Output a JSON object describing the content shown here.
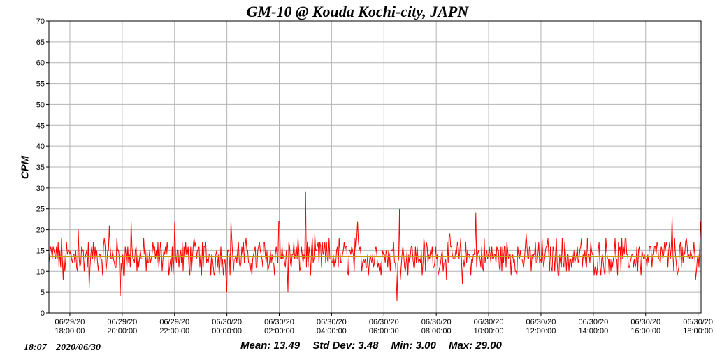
{
  "chart_data": {
    "type": "line",
    "title": "GM-10 @ Kouda Kochi-city, JAPN",
    "ylabel": "CPM",
    "xlabel": "",
    "ylim": [
      0,
      70
    ],
    "yticks": [
      0,
      5,
      10,
      15,
      20,
      25,
      30,
      35,
      40,
      45,
      50,
      55,
      60,
      65,
      70
    ],
    "xlim": [
      "2020-06-29 17:12",
      "2020-06-30 18:07"
    ],
    "xticks": [
      {
        "time": "2020-06-29 18:00",
        "date": "06/29/20",
        "clock": "18:00:00"
      },
      {
        "time": "2020-06-29 20:00",
        "date": "06/29/20",
        "clock": "20:00:00"
      },
      {
        "time": "2020-06-29 22:00",
        "date": "06/29/20",
        "clock": "22:00:00"
      },
      {
        "time": "2020-06-30 00:00",
        "date": "06/30/20",
        "clock": "00:00:00"
      },
      {
        "time": "2020-06-30 02:00",
        "date": "06/30/20",
        "clock": "02:00:00"
      },
      {
        "time": "2020-06-30 04:00",
        "date": "06/30/20",
        "clock": "04:00:00"
      },
      {
        "time": "2020-06-30 06:00",
        "date": "06/30/20",
        "clock": "06:00:00"
      },
      {
        "time": "2020-06-30 08:00",
        "date": "06/30/20",
        "clock": "08:00:00"
      },
      {
        "time": "2020-06-30 10:00",
        "date": "06/30/20",
        "clock": "10:00:00"
      },
      {
        "time": "2020-06-30 12:00",
        "date": "06/30/20",
        "clock": "12:00:00"
      },
      {
        "time": "2020-06-30 14:00",
        "date": "06/30/20",
        "clock": "14:00:00"
      },
      {
        "time": "2020-06-30 16:00",
        "date": "06/30/20",
        "clock": "16:00:00"
      },
      {
        "time": "2020-06-30 18:00",
        "date": "06/30/20",
        "clock": "18:00:00"
      }
    ],
    "grid": true,
    "series": [
      {
        "color": "#ff0000",
        "note_points": [
          {
            "x": "2020-06-29 17:12",
            "y": 12
          },
          {
            "x": "2020-06-29 17:30",
            "y": 16
          },
          {
            "x": "2020-06-29 17:45",
            "y": 8
          },
          {
            "x": "2020-06-29 18:00",
            "y": 14
          },
          {
            "x": "2020-06-29 18:20",
            "y": 20
          },
          {
            "x": "2020-06-29 18:45",
            "y": 6
          },
          {
            "x": "2020-06-29 19:00",
            "y": 13
          },
          {
            "x": "2020-06-29 19:30",
            "y": 21
          },
          {
            "x": "2020-06-29 19:56",
            "y": 4
          },
          {
            "x": "2020-06-29 20:20",
            "y": 22
          },
          {
            "x": "2020-06-29 21:00",
            "y": 12
          },
          {
            "x": "2020-06-29 22:00",
            "y": 22
          },
          {
            "x": "2020-06-29 23:00",
            "y": 14
          },
          {
            "x": "2020-06-30 00:00",
            "y": 5
          },
          {
            "x": "2020-06-30 00:10",
            "y": 22
          },
          {
            "x": "2020-06-30 01:00",
            "y": 13
          },
          {
            "x": "2020-06-30 02:00",
            "y": 22
          },
          {
            "x": "2020-06-30 02:20",
            "y": 5
          },
          {
            "x": "2020-06-30 03:00",
            "y": 29
          },
          {
            "x": "2020-06-30 04:00",
            "y": 12
          },
          {
            "x": "2020-06-30 05:00",
            "y": 22
          },
          {
            "x": "2020-06-30 06:00",
            "y": 14
          },
          {
            "x": "2020-06-30 06:30",
            "y": 3
          },
          {
            "x": "2020-06-30 06:35",
            "y": 25
          },
          {
            "x": "2020-06-30 08:00",
            "y": 13
          },
          {
            "x": "2020-06-30 09:00",
            "y": 7
          },
          {
            "x": "2020-06-30 09:30",
            "y": 24
          },
          {
            "x": "2020-06-30 10:00",
            "y": 14
          },
          {
            "x": "2020-06-30 12:00",
            "y": 12
          },
          {
            "x": "2020-06-30 14:00",
            "y": 14
          },
          {
            "x": "2020-06-30 16:00",
            "y": 13
          },
          {
            "x": "2020-06-30 17:00",
            "y": 23
          },
          {
            "x": "2020-06-30 18:00",
            "y": 14
          },
          {
            "x": "2020-06-30 18:07",
            "y": 22
          }
        ]
      },
      {
        "color": "#c8a000",
        "mean_line": 13.49
      }
    ]
  },
  "stats": {
    "mean": "Mean: 13.49",
    "std": "Std Dev: 3.48",
    "min": "Min: 3.00",
    "max": "Max: 29.00"
  },
  "timestamp": {
    "time": "18:07",
    "date": "2020/06/30"
  },
  "colors": {
    "series": "#ff0000",
    "mean": "#c8a000",
    "grid": "#b4b4b4",
    "frame": "#000000"
  }
}
